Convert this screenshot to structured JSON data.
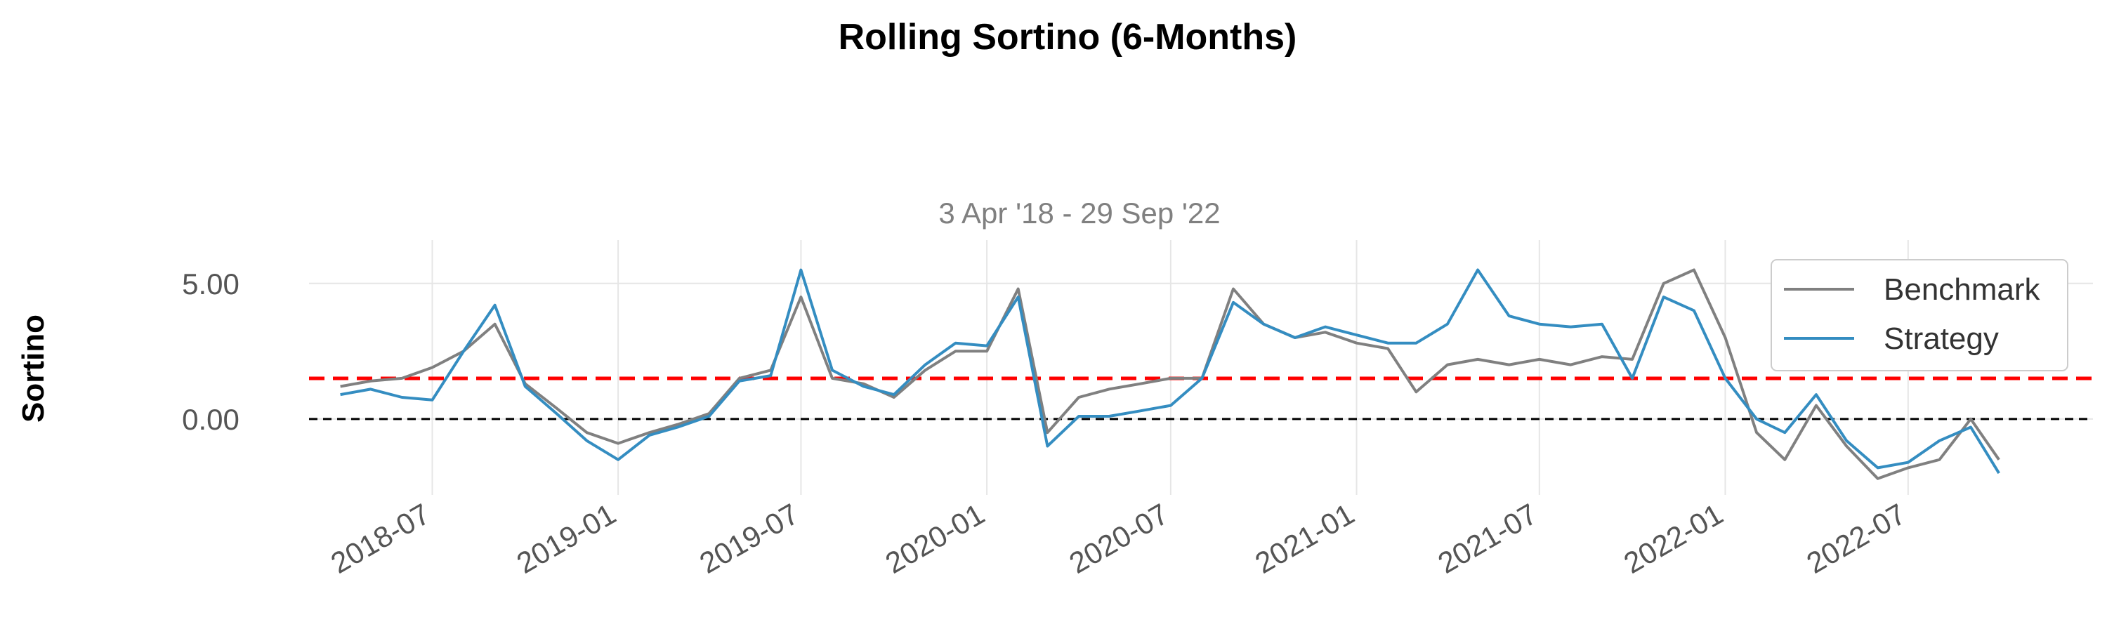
{
  "chart_data": {
    "type": "line",
    "title": "Rolling Sortino (6-Months)",
    "subtitle": "3 Apr '18 - 29 Sep '22",
    "ylabel": "Sortino",
    "xlabel": "",
    "x_ticks": [
      "2018-07",
      "2019-01",
      "2019-07",
      "2020-01",
      "2020-07",
      "2021-01",
      "2021-07",
      "2022-01",
      "2022-07"
    ],
    "y_ticks": [
      "0.00",
      "5.00"
    ],
    "y_tick_values": [
      0,
      5
    ],
    "xlim": [
      "2018-03-01",
      "2022-12-31"
    ],
    "ylim": [
      -2.8,
      6.6
    ],
    "grid": true,
    "legend_position": "top-right",
    "reference_lines": [
      {
        "y": 1.5,
        "color": "#ff0000",
        "style": "dashed"
      },
      {
        "y": 0,
        "color": "#000000",
        "style": "dashed"
      }
    ],
    "x": [
      "2018-04-01",
      "2018-05-01",
      "2018-06-01",
      "2018-07-01",
      "2018-08-01",
      "2018-09-01",
      "2018-10-01",
      "2018-11-01",
      "2018-12-01",
      "2019-01-01",
      "2019-02-01",
      "2019-03-01",
      "2019-04-01",
      "2019-05-01",
      "2019-06-01",
      "2019-07-01",
      "2019-08-01",
      "2019-09-01",
      "2019-10-01",
      "2019-11-01",
      "2019-12-01",
      "2020-01-01",
      "2020-02-01",
      "2020-03-01",
      "2020-04-01",
      "2020-05-01",
      "2020-06-01",
      "2020-07-01",
      "2020-08-01",
      "2020-09-01",
      "2020-10-01",
      "2020-11-01",
      "2020-12-01",
      "2021-01-01",
      "2021-02-01",
      "2021-03-01",
      "2021-04-01",
      "2021-05-01",
      "2021-06-01",
      "2021-07-01",
      "2021-08-01",
      "2021-09-01",
      "2021-10-01",
      "2021-11-01",
      "2021-12-01",
      "2022-01-01",
      "2022-02-01",
      "2022-03-01",
      "2022-04-01",
      "2022-05-01",
      "2022-06-01",
      "2022-07-01",
      "2022-08-01",
      "2022-09-01",
      "2022-09-29"
    ],
    "series": [
      {
        "name": "Benchmark",
        "color": "#808080",
        "values": [
          1.2,
          1.4,
          1.5,
          1.9,
          2.5,
          3.5,
          1.3,
          0.4,
          -0.5,
          -0.9,
          -0.5,
          -0.2,
          0.2,
          1.5,
          1.8,
          4.5,
          1.5,
          1.3,
          0.8,
          1.8,
          2.5,
          2.5,
          4.8,
          -0.5,
          0.8,
          1.1,
          1.3,
          1.5,
          1.5,
          4.8,
          3.5,
          3.0,
          3.2,
          2.8,
          2.6,
          1.0,
          2.0,
          2.2,
          2.0,
          2.2,
          2.0,
          2.3,
          2.2,
          5.0,
          5.5,
          3.0,
          -0.5,
          -1.5,
          0.5,
          -1.0,
          -2.2,
          -1.8,
          -1.5,
          0.0,
          -1.5
        ]
      },
      {
        "name": "Strategy",
        "color": "#348dc1",
        "values": [
          0.9,
          1.1,
          0.8,
          0.7,
          2.5,
          4.2,
          1.2,
          0.2,
          -0.8,
          -1.5,
          -0.6,
          -0.3,
          0.1,
          1.4,
          1.6,
          5.5,
          1.8,
          1.2,
          0.9,
          2.0,
          2.8,
          2.7,
          4.5,
          -1.0,
          0.1,
          0.1,
          0.3,
          0.5,
          1.5,
          4.3,
          3.5,
          3.0,
          3.4,
          3.1,
          2.8,
          2.8,
          3.5,
          5.5,
          3.8,
          3.5,
          3.4,
          3.5,
          1.5,
          4.5,
          4.0,
          1.5,
          0.0,
          -0.5,
          0.9,
          -0.8,
          -1.8,
          -1.6,
          -0.8,
          -0.3,
          -2.0
        ]
      }
    ]
  }
}
